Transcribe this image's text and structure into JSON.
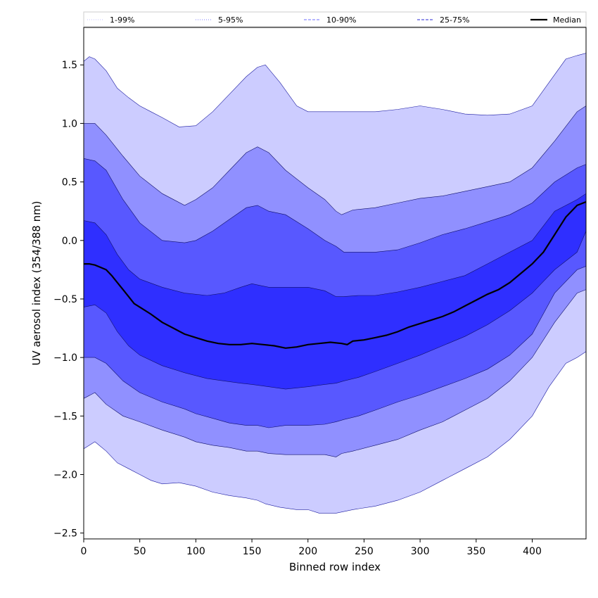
{
  "chart_data": {
    "type": "area",
    "xlabel": "Binned row index",
    "ylabel": "UV aerosol index (354/388 nm)",
    "xlim": [
      0,
      448
    ],
    "ylim": [
      -2.55,
      1.82
    ],
    "x_ticks": [
      0,
      50,
      100,
      150,
      200,
      250,
      300,
      350,
      400
    ],
    "x_tick_labels": [
      "0",
      "50",
      "100",
      "150",
      "200",
      "250",
      "300",
      "350",
      "400"
    ],
    "y_ticks": [
      1.5,
      1.0,
      0.5,
      0.0,
      -0.5,
      -1.0,
      -1.5,
      -2.0,
      -2.5
    ],
    "y_tick_labels": [
      "1.5",
      "1.0",
      "0.5",
      "0.0",
      "−0.5",
      "−1.0",
      "−1.5",
      "−2.0",
      "−2.5"
    ],
    "legend": {
      "placement": "top",
      "entries": [
        {
          "label": "1-99%",
          "style": "dotted",
          "color": "#ccccff"
        },
        {
          "label": "5-95%",
          "style": "dotted",
          "color": "#9999ff"
        },
        {
          "label": "10-90%",
          "style": "dashed",
          "color": "#8a8aff"
        },
        {
          "label": "25-75%",
          "style": "dashed",
          "color": "#5555dd"
        },
        {
          "label": "Median",
          "style": "solid",
          "color": "#000000"
        }
      ]
    },
    "bands": [
      {
        "name": "1-99%",
        "color": "#ccccff",
        "x": [
          0,
          5,
          10,
          20,
          30,
          40,
          50,
          60,
          70,
          85,
          100,
          115,
          130,
          145,
          155,
          162,
          175,
          190,
          200,
          210,
          225,
          240,
          260,
          280,
          300,
          320,
          340,
          360,
          380,
          400,
          415,
          430,
          440,
          448
        ],
        "upper": [
          1.53,
          1.57,
          1.55,
          1.45,
          1.3,
          1.22,
          1.15,
          1.1,
          1.05,
          0.97,
          0.98,
          1.1,
          1.25,
          1.4,
          1.48,
          1.5,
          1.35,
          1.15,
          1.1,
          1.1,
          1.1,
          1.1,
          1.1,
          1.12,
          1.15,
          1.12,
          1.08,
          1.07,
          1.08,
          1.15,
          1.35,
          1.55,
          1.58,
          1.6
        ],
        "lower": [
          -1.78,
          -1.75,
          -1.72,
          -1.8,
          -1.9,
          -1.95,
          -2.0,
          -2.05,
          -2.08,
          -2.07,
          -2.1,
          -2.15,
          -2.18,
          -2.2,
          -2.22,
          -2.25,
          -2.28,
          -2.3,
          -2.3,
          -2.33,
          -2.33,
          -2.3,
          -2.27,
          -2.22,
          -2.15,
          -2.05,
          -1.95,
          -1.85,
          -1.7,
          -1.5,
          -1.25,
          -1.05,
          -1.0,
          -0.95
        ]
      },
      {
        "name": "5-95%",
        "color": "#9090ff",
        "x": [
          0,
          10,
          20,
          35,
          50,
          70,
          90,
          100,
          115,
          130,
          145,
          155,
          165,
          180,
          200,
          215,
          225,
          230,
          240,
          260,
          280,
          300,
          320,
          340,
          360,
          380,
          400,
          420,
          440,
          448
        ],
        "upper": [
          1.0,
          1.0,
          0.9,
          0.72,
          0.55,
          0.4,
          0.3,
          0.35,
          0.45,
          0.6,
          0.75,
          0.8,
          0.75,
          0.6,
          0.45,
          0.35,
          0.25,
          0.22,
          0.26,
          0.28,
          0.32,
          0.36,
          0.38,
          0.42,
          0.46,
          0.5,
          0.62,
          0.85,
          1.1,
          1.15
        ],
        "lower": [
          -1.35,
          -1.3,
          -1.4,
          -1.5,
          -1.55,
          -1.62,
          -1.68,
          -1.72,
          -1.75,
          -1.77,
          -1.8,
          -1.8,
          -1.82,
          -1.83,
          -1.83,
          -1.83,
          -1.85,
          -1.82,
          -1.8,
          -1.75,
          -1.7,
          -1.62,
          -1.55,
          -1.45,
          -1.35,
          -1.2,
          -1.0,
          -0.7,
          -0.45,
          -0.42
        ]
      },
      {
        "name": "10-90%",
        "color": "#5858ff",
        "x": [
          0,
          10,
          20,
          35,
          50,
          70,
          90,
          100,
          115,
          130,
          145,
          155,
          165,
          180,
          200,
          215,
          225,
          232,
          245,
          260,
          280,
          300,
          320,
          340,
          360,
          380,
          400,
          420,
          440,
          448
        ],
        "upper": [
          0.7,
          0.68,
          0.6,
          0.35,
          0.15,
          0.0,
          -0.02,
          0.0,
          0.08,
          0.18,
          0.28,
          0.3,
          0.25,
          0.22,
          0.1,
          0.0,
          -0.05,
          -0.1,
          -0.1,
          -0.1,
          -0.08,
          -0.02,
          0.05,
          0.1,
          0.16,
          0.22,
          0.32,
          0.5,
          0.62,
          0.65
        ],
        "lower": [
          -1.0,
          -1.0,
          -1.05,
          -1.2,
          -1.3,
          -1.38,
          -1.44,
          -1.48,
          -1.52,
          -1.56,
          -1.58,
          -1.58,
          -1.6,
          -1.58,
          -1.58,
          -1.57,
          -1.55,
          -1.53,
          -1.5,
          -1.45,
          -1.38,
          -1.32,
          -1.25,
          -1.18,
          -1.1,
          -0.98,
          -0.8,
          -0.45,
          -0.25,
          -0.22
        ]
      },
      {
        "name": "25-75%",
        "color": "#2f2fff",
        "x": [
          0,
          10,
          20,
          30,
          40,
          50,
          70,
          90,
          110,
          125,
          140,
          150,
          165,
          180,
          200,
          215,
          225,
          232,
          245,
          260,
          280,
          300,
          320,
          340,
          360,
          380,
          400,
          420,
          440,
          448
        ],
        "upper": [
          0.17,
          0.15,
          0.05,
          -0.12,
          -0.25,
          -0.33,
          -0.4,
          -0.45,
          -0.47,
          -0.45,
          -0.4,
          -0.37,
          -0.4,
          -0.4,
          -0.4,
          -0.43,
          -0.48,
          -0.48,
          -0.47,
          -0.47,
          -0.44,
          -0.4,
          -0.35,
          -0.3,
          -0.2,
          -0.1,
          0.0,
          0.25,
          0.35,
          0.4
        ],
        "lower": [
          -0.57,
          -0.55,
          -0.62,
          -0.78,
          -0.9,
          -0.98,
          -1.07,
          -1.13,
          -1.18,
          -1.2,
          -1.22,
          -1.23,
          -1.25,
          -1.27,
          -1.25,
          -1.23,
          -1.22,
          -1.2,
          -1.17,
          -1.12,
          -1.05,
          -0.98,
          -0.9,
          -0.82,
          -0.72,
          -0.6,
          -0.45,
          -0.25,
          -0.1,
          0.08
        ]
      }
    ],
    "median": {
      "name": "Median",
      "x": [
        0,
        5,
        10,
        15,
        20,
        25,
        30,
        35,
        40,
        45,
        50,
        60,
        70,
        80,
        90,
        100,
        110,
        120,
        130,
        140,
        150,
        160,
        170,
        180,
        190,
        200,
        210,
        220,
        230,
        235,
        240,
        250,
        260,
        270,
        280,
        290,
        300,
        310,
        320,
        330,
        340,
        350,
        360,
        370,
        380,
        390,
        400,
        410,
        420,
        430,
        440,
        448
      ],
      "y": [
        -0.2,
        -0.2,
        -0.21,
        -0.23,
        -0.25,
        -0.3,
        -0.36,
        -0.42,
        -0.48,
        -0.54,
        -0.57,
        -0.63,
        -0.7,
        -0.75,
        -0.8,
        -0.83,
        -0.86,
        -0.88,
        -0.89,
        -0.89,
        -0.88,
        -0.89,
        -0.9,
        -0.92,
        -0.91,
        -0.89,
        -0.88,
        -0.87,
        -0.88,
        -0.89,
        -0.86,
        -0.85,
        -0.83,
        -0.81,
        -0.78,
        -0.74,
        -0.71,
        -0.68,
        -0.65,
        -0.61,
        -0.56,
        -0.51,
        -0.46,
        -0.42,
        -0.36,
        -0.28,
        -0.2,
        -0.1,
        0.05,
        0.2,
        0.3,
        0.33
      ]
    }
  }
}
